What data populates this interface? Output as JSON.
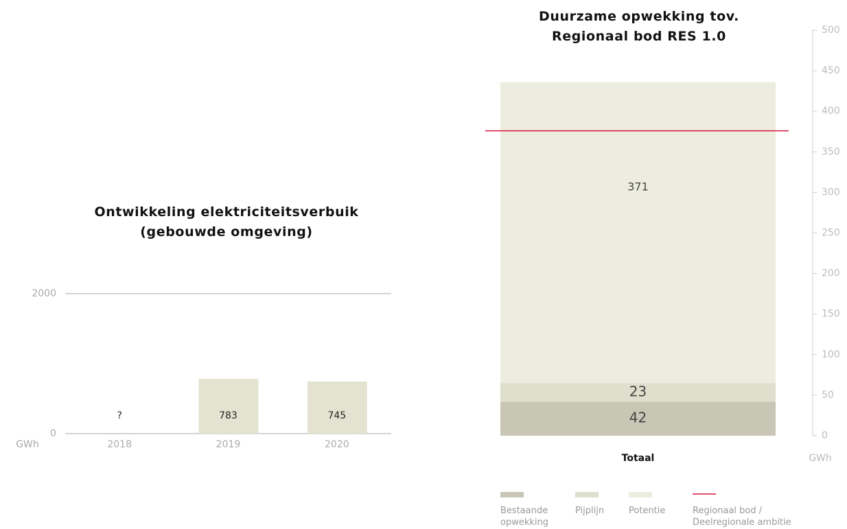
{
  "chart_data": [
    {
      "type": "bar",
      "title": "Ontwikkeling elektriciteitsverbuik\n(gebouwde omgeving)",
      "y_label": "GWh",
      "categories": [
        "2018",
        "2019",
        "2020"
      ],
      "values": [
        null,
        783,
        745
      ],
      "value_labels": [
        "?",
        "783",
        "745"
      ],
      "color": "#e4e3d1",
      "ylim": [
        0,
        2000
      ],
      "yticks": [
        0,
        2000
      ],
      "grid": true
    },
    {
      "type": "stacked_bar",
      "title": "Duurzame opwekking tov.\nRegionaal bod RES 1.0",
      "y_label": "GWh",
      "categories": [
        "Totaal"
      ],
      "series": [
        {
          "name": "Bestaande opwekking",
          "color": "#c8c6b4",
          "values": [
            42
          ]
        },
        {
          "name": "Pijplijn",
          "color": "#dfdfcd",
          "values": [
            23
          ]
        },
        {
          "name": "Potentie",
          "color": "#ecedde",
          "values": [
            371
          ]
        }
      ],
      "reference_lines": [
        {
          "name": "Regionaal bod / Deelregionale ambitie",
          "value": 376,
          "color": "#d6163c"
        }
      ],
      "ylim": [
        0,
        500
      ],
      "yticks": [
        0,
        50,
        100,
        150,
        200,
        250,
        300,
        350,
        400,
        450,
        500
      ]
    }
  ]
}
